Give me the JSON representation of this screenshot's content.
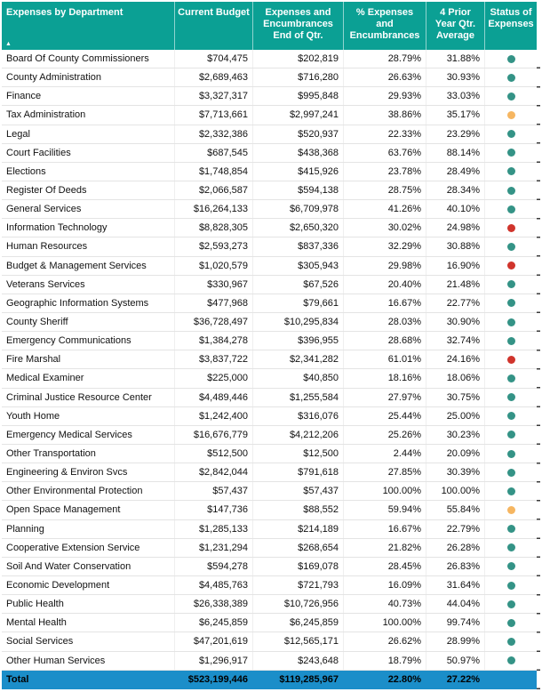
{
  "chart_data": {
    "type": "table",
    "title": "Expenses by Department",
    "columns": [
      "Expenses by Department",
      "Current Budget",
      "Expenses and Encumbrances End of Qtr.",
      "% Expenses and Encumbrances",
      "4 Prior Year Qtr. Average",
      "Status of Expenses"
    ],
    "sort": {
      "column": "Expenses by Department",
      "direction": "ascending"
    },
    "rows": [
      [
        "Board Of County Commissioners",
        "$704,475",
        "$202,819",
        "28.79%",
        "31.88%",
        "green"
      ],
      [
        "County Administration",
        "$2,689,463",
        "$716,280",
        "26.63%",
        "30.93%",
        "green"
      ],
      [
        "Finance",
        "$3,327,317",
        "$995,848",
        "29.93%",
        "33.03%",
        "green"
      ],
      [
        "Tax Administration",
        "$7,713,661",
        "$2,997,241",
        "38.86%",
        "35.17%",
        "amber"
      ],
      [
        "Legal",
        "$2,332,386",
        "$520,937",
        "22.33%",
        "23.29%",
        "green"
      ],
      [
        "Court Facilities",
        "$687,545",
        "$438,368",
        "63.76%",
        "88.14%",
        "green"
      ],
      [
        "Elections",
        "$1,748,854",
        "$415,926",
        "23.78%",
        "28.49%",
        "green"
      ],
      [
        "Register Of Deeds",
        "$2,066,587",
        "$594,138",
        "28.75%",
        "28.34%",
        "green"
      ],
      [
        "General Services",
        "$16,264,133",
        "$6,709,978",
        "41.26%",
        "40.10%",
        "green"
      ],
      [
        "Information Technology",
        "$8,828,305",
        "$2,650,320",
        "30.02%",
        "24.98%",
        "red"
      ],
      [
        "Human Resources",
        "$2,593,273",
        "$837,336",
        "32.29%",
        "30.88%",
        "green"
      ],
      [
        "Budget & Management Services",
        "$1,020,579",
        "$305,943",
        "29.98%",
        "16.90%",
        "red"
      ],
      [
        "Veterans Services",
        "$330,967",
        "$67,526",
        "20.40%",
        "21.48%",
        "green"
      ],
      [
        "Geographic Information Systems",
        "$477,968",
        "$79,661",
        "16.67%",
        "22.77%",
        "green"
      ],
      [
        "County Sheriff",
        "$36,728,497",
        "$10,295,834",
        "28.03%",
        "30.90%",
        "green"
      ],
      [
        "Emergency Communications",
        "$1,384,278",
        "$396,955",
        "28.68%",
        "32.74%",
        "green"
      ],
      [
        "Fire Marshal",
        "$3,837,722",
        "$2,341,282",
        "61.01%",
        "24.16%",
        "red"
      ],
      [
        "Medical Examiner",
        "$225,000",
        "$40,850",
        "18.16%",
        "18.06%",
        "green"
      ],
      [
        "Criminal Justice Resource Center",
        "$4,489,446",
        "$1,255,584",
        "27.97%",
        "30.75%",
        "green"
      ],
      [
        "Youth Home",
        "$1,242,400",
        "$316,076",
        "25.44%",
        "25.00%",
        "green"
      ],
      [
        "Emergency Medical Services",
        "$16,676,779",
        "$4,212,206",
        "25.26%",
        "30.23%",
        "green"
      ],
      [
        "Other Transportation",
        "$512,500",
        "$12,500",
        "2.44%",
        "20.09%",
        "green"
      ],
      [
        "Engineering & Environ Svcs",
        "$2,842,044",
        "$791,618",
        "27.85%",
        "30.39%",
        "green"
      ],
      [
        "Other Environmental Protection",
        "$57,437",
        "$57,437",
        "100.00%",
        "100.00%",
        "green"
      ],
      [
        "Open Space Management",
        "$147,736",
        "$88,552",
        "59.94%",
        "55.84%",
        "amber"
      ],
      [
        "Planning",
        "$1,285,133",
        "$214,189",
        "16.67%",
        "22.79%",
        "green"
      ],
      [
        "Cooperative Extension Service",
        "$1,231,294",
        "$268,654",
        "21.82%",
        "26.28%",
        "green"
      ],
      [
        "Soil And Water Conservation",
        "$594,278",
        "$169,078",
        "28.45%",
        "26.83%",
        "green"
      ],
      [
        "Economic Development",
        "$4,485,763",
        "$721,793",
        "16.09%",
        "31.64%",
        "green"
      ],
      [
        "Public Health",
        "$26,338,389",
        "$10,726,956",
        "40.73%",
        "44.04%",
        "green"
      ],
      [
        "Mental Health",
        "$6,245,859",
        "$6,245,859",
        "100.00%",
        "99.74%",
        "green"
      ],
      [
        "Social Services",
        "$47,201,619",
        "$12,565,171",
        "26.62%",
        "28.99%",
        "green"
      ],
      [
        "Other Human Services",
        "$1,296,917",
        "$243,648",
        "18.79%",
        "50.97%",
        "green"
      ]
    ],
    "total": [
      "Total",
      "$523,199,446",
      "$119,285,967",
      "22.80%",
      "27.22%"
    ]
  },
  "colors": {
    "header_bg": "#0ba094",
    "total_bg": "#1b8ec9",
    "grid": "#e4e4e4",
    "status": {
      "green": "#349386",
      "amber": "#f6b661",
      "red": "#d0342c"
    }
  },
  "icons": {
    "sort_ascending": "▲"
  }
}
